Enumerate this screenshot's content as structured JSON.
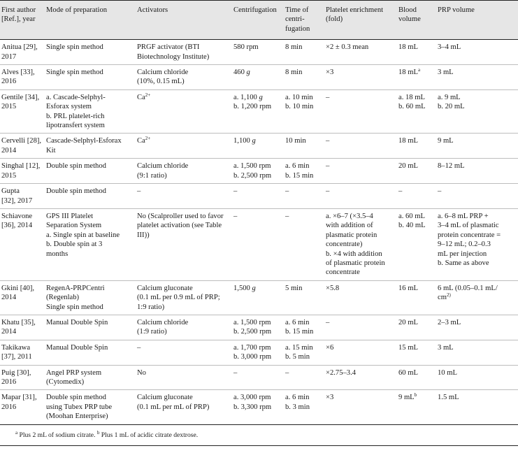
{
  "headers": [
    [
      "First author",
      "[Ref.], year"
    ],
    [
      "Mode of preparation"
    ],
    [
      "Activators"
    ],
    [
      "Centrifugation"
    ],
    [
      "Time of",
      "centri-",
      "fugation"
    ],
    [
      "Platelet enrichment",
      "(fold)"
    ],
    [
      "Blood",
      "volume"
    ],
    [
      "PRP volume"
    ]
  ],
  "rows": [
    [
      [
        "Anitua [29],",
        "2017"
      ],
      [
        "Single spin method"
      ],
      [
        "PRGF activator (BTI",
        "Biotechnology Institute)"
      ],
      [
        "580 rpm"
      ],
      [
        "8 min"
      ],
      [
        "×2 ± 0.3 mean"
      ],
      [
        "18 mL"
      ],
      [
        "3–4 mL"
      ]
    ],
    [
      [
        "Alves [33],",
        "2016"
      ],
      [
        "Single spin method"
      ],
      [
        "Calcium chloride",
        "(10%, 0.15 mL)"
      ],
      [
        "460 g"
      ],
      [
        "8 min"
      ],
      [
        "×3"
      ],
      [
        "18 mL^a"
      ],
      [
        "3 mL"
      ]
    ],
    [
      [
        "Gentile [34],",
        "2015"
      ],
      [
        "a. Cascade-Selphyl-",
        "Esforax system",
        "b. PRL platelet-rich",
        "lipotransfert system"
      ],
      [
        "Ca^2+"
      ],
      [
        "a. 1,100 g",
        "b. 1,200 rpm"
      ],
      [
        "a. 10 min",
        "b. 10 min"
      ],
      [
        "–"
      ],
      [
        "a. 18 mL",
        "b. 60 mL"
      ],
      [
        "a. 9 mL",
        "b. 20 mL"
      ]
    ],
    [
      [
        "Cervelli [28],",
        "2014"
      ],
      [
        "Cascade-Selphyl-Esforax",
        "Kit"
      ],
      [
        "Ca^2+"
      ],
      [
        "1,100 g"
      ],
      [
        "10 min"
      ],
      [
        "–"
      ],
      [
        "18 mL"
      ],
      [
        "9 mL"
      ]
    ],
    [
      [
        "Singhal [12],",
        "2015"
      ],
      [
        "Double spin method"
      ],
      [
        "Calcium chloride",
        "(9:1 ratio)"
      ],
      [
        "a. 1,500 rpm",
        "b. 2,500 rpm"
      ],
      [
        "a. 6 min",
        "b. 15 min"
      ],
      [
        "–"
      ],
      [
        "20 mL"
      ],
      [
        "8–12 mL"
      ]
    ],
    [
      [
        "Gupta",
        "[32], 2017"
      ],
      [
        "Double spin method"
      ],
      [
        "–"
      ],
      [
        "–"
      ],
      [
        "–"
      ],
      [
        "–"
      ],
      [
        "–"
      ],
      [
        "–"
      ]
    ],
    [
      [
        "Schiavone",
        "[36], 2014"
      ],
      [
        "GPS III Platelet",
        "Separation System",
        "a. Single spin at baseline",
        "b. Double spin at 3",
        "months"
      ],
      [
        "No (Scalproller used to favor",
        "platelet activation (see Table",
        "III))"
      ],
      [
        "–"
      ],
      [
        "–"
      ],
      [
        "a. ×6–7 (×3.5–4",
        "with addition of",
        "plasmatic protein",
        "concentrate)",
        "b. ×4 with addition",
        "of plasmatic protein",
        "concentrate"
      ],
      [
        "a. 60 mL",
        "b. 40 mL"
      ],
      [
        "a. 6–8 mL PRP +",
        "3–4 mL of plasmatic",
        "protein concentrate =",
        "9–12 mL; 0.2–0.3",
        "mL per injection",
        "b. Same as above"
      ]
    ],
    [
      [
        "Gkini [40],",
        "2014"
      ],
      [
        "RegenA-PRPCentri",
        "(Regenlab)",
        "Single spin method"
      ],
      [
        "Calcium gluconate",
        "(0.1 mL per 0.9 mL of PRP;",
        "1:9 ratio)"
      ],
      [
        "1,500 g"
      ],
      [
        "5 min"
      ],
      [
        "×5.8"
      ],
      [
        "16 mL"
      ],
      [
        "6 mL (0.05–0.1 mL/",
        "cm^2)"
      ]
    ],
    [
      [
        "Khatu [35],",
        "2014"
      ],
      [
        "Manual Double Spin"
      ],
      [
        "Calcium chloride",
        "(1:9 ratio)"
      ],
      [
        "a. 1,500 rpm",
        "b. 2,500 rpm"
      ],
      [
        "a. 6 min",
        "b. 15 min"
      ],
      [
        "–"
      ],
      [
        "20 mL"
      ],
      [
        "2–3 mL"
      ]
    ],
    [
      [
        "Takikawa",
        "[37], 2011"
      ],
      [
        "Manual Double Spin"
      ],
      [
        "–"
      ],
      [
        "a. 1,700 rpm",
        "b. 3,000 rpm"
      ],
      [
        "a. 15 min",
        "b. 5 min"
      ],
      [
        "×6"
      ],
      [
        "15 mL"
      ],
      [
        "3 mL"
      ]
    ],
    [
      [
        "Puig [30],",
        "2016"
      ],
      [
        "Angel PRP system",
        "(Cytomedix)"
      ],
      [
        "No"
      ],
      [
        "–"
      ],
      [
        "–"
      ],
      [
        "×2.75–3.4"
      ],
      [
        "60 mL"
      ],
      [
        "10 mL"
      ]
    ],
    [
      [
        "Mapar [31],",
        "2016"
      ],
      [
        "Double spin method",
        "using Tubex PRP tube",
        "(Moohan Enterprise)"
      ],
      [
        "Calcium gluconate",
        "(0.1 mL per mL of PRP)"
      ],
      [
        "a. 3,000 rpm",
        "b. 3,300 rpm"
      ],
      [
        "a. 6 min",
        "b. 3 min"
      ],
      [
        "×3"
      ],
      [
        "9 mL^b"
      ],
      [
        "1.5 mL"
      ]
    ]
  ],
  "footnote": "^a Plus 2 mL of sodium citrate. ^b Plus 1 mL of acidic citrate dextrose."
}
